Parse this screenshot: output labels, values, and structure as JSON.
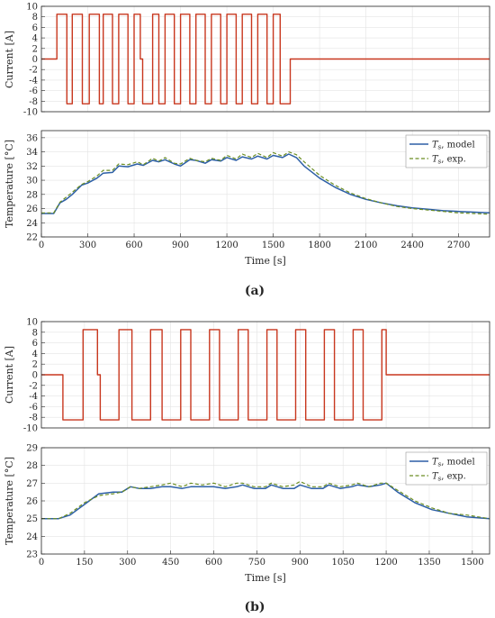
{
  "colors": {
    "current": "#c8371e",
    "model": "#2d5fa6",
    "exp": "#6b8e23",
    "grid": "#e3e3e3",
    "axis": "#262626"
  },
  "panels": [
    {
      "caption": "(a)",
      "current_plot": {
        "ylabel": "Current [A]",
        "yticks": [
          10,
          8,
          6,
          4,
          2,
          0,
          -2,
          -4,
          -6,
          -8,
          -10
        ],
        "ylim": [
          -10,
          10
        ],
        "xlim": [
          0,
          2900
        ]
      },
      "temp_plot": {
        "ylabel": "Temperature [°C]",
        "xlabel": "Time [s]",
        "yticks": [
          36,
          34,
          32,
          30,
          28,
          26,
          24,
          22
        ],
        "ylim": [
          22,
          37
        ],
        "xticks": [
          0,
          300,
          600,
          900,
          1200,
          1500,
          1800,
          2100,
          2400,
          2700
        ],
        "xlim": [
          0,
          2900
        ],
        "legend": [
          {
            "sym": "T",
            "sub": "s",
            "label": ", model"
          },
          {
            "sym": "T",
            "sub": "s",
            "label": ", exp."
          }
        ]
      }
    },
    {
      "caption": "(b)",
      "current_plot": {
        "ylabel": "Current [A]",
        "yticks": [
          10,
          8,
          6,
          4,
          2,
          0,
          -2,
          -4,
          -6,
          -8,
          -10
        ],
        "ylim": [
          -10,
          10
        ],
        "xlim": [
          0,
          1560
        ]
      },
      "temp_plot": {
        "ylabel": "Temperature [°C]",
        "xlabel": "Time [s]",
        "yticks": [
          29,
          28,
          27,
          26,
          25,
          24,
          23
        ],
        "ylim": [
          23,
          29
        ],
        "xticks": [
          0,
          150,
          300,
          450,
          600,
          750,
          900,
          1050,
          1200,
          1350,
          1500
        ],
        "xlim": [
          0,
          1560
        ],
        "legend": [
          {
            "sym": "T",
            "sub": "s",
            "label": ", model"
          },
          {
            "sym": "T",
            "sub": "s",
            "label": ", exp."
          }
        ]
      }
    }
  ],
  "chart_data": [
    {
      "type": "line",
      "ylabel": "Current [A]",
      "xlim": [
        0,
        2900
      ],
      "ylim": [
        -10,
        10
      ],
      "series": [
        {
          "x": [
            0,
            100,
            100,
            165,
            165,
            200,
            200,
            265,
            265,
            310,
            310,
            375,
            375,
            400,
            400,
            460,
            460,
            500,
            500,
            560,
            560,
            600,
            600,
            640,
            640,
            655,
            655,
            720,
            720,
            760,
            760,
            800,
            800,
            860,
            860,
            900,
            900,
            960,
            960,
            1000,
            1000,
            1060,
            1060,
            1100,
            1100,
            1160,
            1160,
            1200,
            1200,
            1260,
            1260,
            1300,
            1300,
            1360,
            1360,
            1400,
            1400,
            1460,
            1460,
            1500,
            1500,
            1545,
            1545,
            1610,
            1610,
            2900
          ],
          "y": [
            0,
            0,
            8.5,
            8.5,
            -8.5,
            -8.5,
            8.5,
            8.5,
            -8.5,
            -8.5,
            8.5,
            8.5,
            -8.5,
            -8.5,
            8.5,
            8.5,
            -8.5,
            -8.5,
            8.5,
            8.5,
            -8.5,
            -8.5,
            8.5,
            8.5,
            0,
            0,
            -8.5,
            -8.5,
            8.5,
            8.5,
            -8.5,
            -8.5,
            8.5,
            8.5,
            -8.5,
            -8.5,
            8.5,
            8.5,
            -8.5,
            -8.5,
            8.5,
            8.5,
            -8.5,
            -8.5,
            8.5,
            8.5,
            -8.5,
            -8.5,
            8.5,
            8.5,
            -8.5,
            -8.5,
            8.5,
            8.5,
            -8.5,
            -8.5,
            8.5,
            8.5,
            -8.5,
            -8.5,
            8.5,
            8.5,
            -8.5,
            -8.5,
            0,
            0
          ]
        }
      ]
    },
    {
      "type": "line",
      "xlabel": "Time [s]",
      "ylabel": "Temperature [°C]",
      "xlim": [
        0,
        2900
      ],
      "ylim": [
        22,
        37
      ],
      "series": [
        {
          "x": [
            0,
            80,
            120,
            160,
            200,
            260,
            300,
            360,
            400,
            460,
            500,
            560,
            620,
            660,
            720,
            760,
            800,
            860,
            900,
            960,
            1000,
            1060,
            1100,
            1160,
            1200,
            1260,
            1300,
            1360,
            1400,
            1460,
            1500,
            1560,
            1600,
            1650,
            1700,
            1800,
            1900,
            2000,
            2100,
            2200,
            2300,
            2400,
            2500,
            2600,
            2700,
            2800,
            2900
          ],
          "y": [
            25.3,
            25.3,
            26.8,
            27.3,
            28.0,
            29.3,
            29.6,
            30.3,
            31.0,
            31.1,
            32.0,
            31.9,
            32.3,
            32.1,
            32.8,
            32.6,
            32.9,
            32.3,
            32.0,
            32.9,
            32.8,
            32.4,
            32.9,
            32.7,
            33.2,
            32.8,
            33.3,
            33.0,
            33.4,
            33.0,
            33.5,
            33.2,
            33.7,
            33.2,
            32.0,
            30.3,
            29.0,
            28.0,
            27.3,
            26.8,
            26.4,
            26.1,
            25.9,
            25.7,
            25.6,
            25.5,
            25.4
          ]
        },
        {
          "x": [
            0,
            80,
            120,
            160,
            200,
            260,
            300,
            360,
            400,
            460,
            500,
            560,
            620,
            660,
            720,
            760,
            800,
            860,
            900,
            960,
            1000,
            1060,
            1100,
            1160,
            1200,
            1260,
            1300,
            1360,
            1400,
            1460,
            1500,
            1560,
            1600,
            1650,
            1700,
            1800,
            1900,
            2000,
            2100,
            2200,
            2300,
            2400,
            2500,
            2600,
            2700,
            2800,
            2900
          ],
          "y": [
            25.4,
            25.4,
            26.9,
            27.6,
            28.3,
            29.4,
            29.8,
            30.6,
            31.4,
            31.4,
            32.3,
            32.2,
            32.6,
            32.2,
            33.1,
            32.7,
            33.2,
            32.4,
            32.3,
            33.1,
            32.8,
            32.6,
            33.1,
            32.8,
            33.5,
            33.0,
            33.7,
            33.2,
            33.8,
            33.2,
            33.9,
            33.4,
            34.0,
            33.6,
            32.6,
            30.7,
            29.3,
            28.2,
            27.4,
            26.8,
            26.3,
            26.0,
            25.8,
            25.6,
            25.4,
            25.3,
            25.2
          ]
        }
      ]
    },
    {
      "type": "line",
      "ylabel": "Current [A]",
      "xlim": [
        0,
        1560
      ],
      "ylim": [
        -10,
        10
      ],
      "series": [
        {
          "x": [
            0,
            75,
            75,
            145,
            145,
            195,
            195,
            205,
            205,
            270,
            270,
            315,
            315,
            380,
            380,
            420,
            420,
            485,
            485,
            520,
            520,
            585,
            585,
            620,
            620,
            685,
            685,
            720,
            720,
            785,
            785,
            820,
            820,
            885,
            885,
            920,
            920,
            985,
            985,
            1020,
            1020,
            1085,
            1085,
            1120,
            1120,
            1185,
            1185,
            1200,
            1200,
            1560
          ],
          "y": [
            0,
            0,
            -8.5,
            -8.5,
            8.5,
            8.5,
            0,
            0,
            -8.5,
            -8.5,
            8.5,
            8.5,
            -8.5,
            -8.5,
            8.5,
            8.5,
            -8.5,
            -8.5,
            8.5,
            8.5,
            -8.5,
            -8.5,
            8.5,
            8.5,
            -8.5,
            -8.5,
            8.5,
            8.5,
            -8.5,
            -8.5,
            8.5,
            8.5,
            -8.5,
            -8.5,
            8.5,
            8.5,
            -8.5,
            -8.5,
            8.5,
            8.5,
            -8.5,
            -8.5,
            8.5,
            8.5,
            -8.5,
            -8.5,
            8.5,
            8.5,
            0,
            0
          ]
        }
      ]
    },
    {
      "type": "line",
      "xlabel": "Time [s]",
      "ylabel": "Temperature [°C]",
      "xlim": [
        0,
        1560
      ],
      "ylim": [
        23,
        29
      ],
      "series": [
        {
          "x": [
            0,
            60,
            100,
            150,
            200,
            250,
            280,
            310,
            340,
            380,
            420,
            450,
            490,
            520,
            560,
            600,
            640,
            680,
            700,
            740,
            780,
            800,
            840,
            880,
            900,
            940,
            980,
            1000,
            1040,
            1080,
            1100,
            1140,
            1180,
            1200,
            1240,
            1300,
            1360,
            1420,
            1480,
            1560
          ],
          "y": [
            25.0,
            25.0,
            25.2,
            25.8,
            26.4,
            26.5,
            26.5,
            26.8,
            26.7,
            26.7,
            26.8,
            26.8,
            26.7,
            26.8,
            26.8,
            26.8,
            26.7,
            26.8,
            26.9,
            26.7,
            26.7,
            26.9,
            26.7,
            26.7,
            26.9,
            26.7,
            26.7,
            26.9,
            26.7,
            26.8,
            26.9,
            26.8,
            26.9,
            27.0,
            26.5,
            25.9,
            25.5,
            25.3,
            25.1,
            25.0
          ]
        },
        {
          "x": [
            0,
            60,
            100,
            150,
            200,
            250,
            280,
            310,
            340,
            380,
            420,
            450,
            490,
            520,
            560,
            600,
            640,
            680,
            700,
            740,
            780,
            800,
            840,
            880,
            900,
            940,
            980,
            1000,
            1040,
            1080,
            1100,
            1140,
            1180,
            1200,
            1240,
            1300,
            1360,
            1420,
            1480,
            1560
          ],
          "y": [
            25.0,
            25.0,
            25.3,
            25.9,
            26.3,
            26.4,
            26.5,
            26.8,
            26.7,
            26.8,
            26.9,
            27.0,
            26.8,
            27.0,
            26.9,
            27.0,
            26.8,
            27.0,
            27.0,
            26.8,
            26.8,
            27.0,
            26.8,
            26.9,
            27.1,
            26.8,
            26.8,
            27.0,
            26.8,
            26.9,
            27.0,
            26.8,
            27.0,
            27.0,
            26.6,
            26.0,
            25.6,
            25.3,
            25.2,
            25.0
          ]
        }
      ]
    }
  ]
}
